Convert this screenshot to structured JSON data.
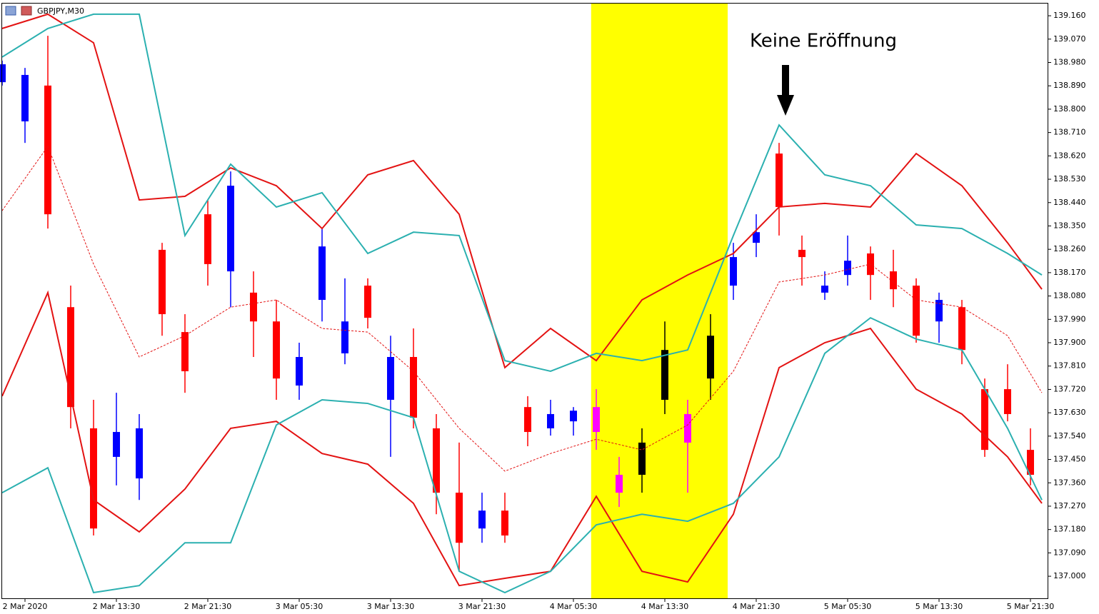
{
  "chart_data": {
    "type": "candlestick",
    "symbol": "GBPJPY,M30",
    "annotation": "Keine Eröffnung",
    "xlim": [
      0,
      183
    ],
    "ylim": [
      136.915,
      139.207
    ],
    "xticks": [
      {
        "value": 4,
        "label": "2 Mar 2020"
      },
      {
        "value": 20,
        "label": "2 Mar 13:30"
      },
      {
        "value": 36,
        "label": "2 Mar 21:30"
      },
      {
        "value": 52,
        "label": "3 Mar 05:30"
      },
      {
        "value": 68,
        "label": "3 Mar 13:30"
      },
      {
        "value": 84,
        "label": "3 Mar 21:30"
      },
      {
        "value": 100,
        "label": "4 Mar 05:30"
      },
      {
        "value": 116,
        "label": "4 Mar 13:30"
      },
      {
        "value": 132,
        "label": "4 Mar 21:30"
      },
      {
        "value": 148,
        "label": "5 Mar 05:30"
      },
      {
        "value": 164,
        "label": "5 Mar 13:30"
      },
      {
        "value": 180,
        "label": "5 Mar 21:30"
      }
    ],
    "yticks": [
      {
        "value": 137,
        "label": "137.000"
      },
      {
        "value": 137.09,
        "label": "137.090"
      },
      {
        "value": 137.18,
        "label": "137.180"
      },
      {
        "value": 137.27,
        "label": "137.270"
      },
      {
        "value": 137.36,
        "label": "137.360"
      },
      {
        "value": 137.45,
        "label": "137.450"
      },
      {
        "value": 137.54,
        "label": "137.540"
      },
      {
        "value": 137.63,
        "label": "137.630"
      },
      {
        "value": 137.72,
        "label": "137.720"
      },
      {
        "value": 137.81,
        "label": "137.810"
      },
      {
        "value": 137.9,
        "label": "137.900"
      },
      {
        "value": 137.99,
        "label": "137.990"
      },
      {
        "value": 138.08,
        "label": "138.080"
      },
      {
        "value": 138.17,
        "label": "138.170"
      },
      {
        "value": 138.26,
        "label": "138.260"
      },
      {
        "value": 138.35,
        "label": "138.350"
      },
      {
        "value": 138.44,
        "label": "138.440"
      },
      {
        "value": 138.53,
        "label": "138.530"
      },
      {
        "value": 138.62,
        "label": "138.620"
      },
      {
        "value": 138.71,
        "label": "138.710"
      },
      {
        "value": 138.8,
        "label": "138.800"
      },
      {
        "value": 138.89,
        "label": "138.890"
      },
      {
        "value": 138.98,
        "label": "138.980"
      },
      {
        "value": 139.07,
        "label": "139.070"
      },
      {
        "value": 139.16,
        "label": "139.160"
      }
    ],
    "highlight_range": [
      103.1,
      127
    ],
    "highlight_color": "#ffff00",
    "up_color": "#0000ff",
    "down_color": "#ff0000",
    "highlight_up_color": "#000000",
    "highlight_down_color": "#ff00ff",
    "candles": {
      "x": [
        0,
        4,
        8,
        12,
        16,
        20,
        24,
        28,
        32,
        36,
        40,
        44,
        48,
        52,
        56,
        60,
        64,
        68,
        72,
        76,
        80,
        84,
        88,
        92,
        96,
        100,
        104,
        108,
        112,
        116,
        120,
        124,
        128,
        132,
        136,
        140,
        144,
        148,
        152,
        156,
        160,
        164,
        168,
        172,
        176,
        180
      ],
      "open": [
        138.904,
        138.753,
        138.891,
        138.037,
        137.57,
        137.46,
        137.377,
        138.258,
        137.941,
        138.395,
        138.175,
        138.093,
        137.982,
        137.735,
        138.065,
        137.859,
        138.12,
        137.68,
        137.845,
        137.57,
        137.322,
        137.184,
        137.253,
        137.652,
        137.57,
        137.597,
        137.652,
        137.391,
        137.391,
        137.68,
        137.625,
        137.762,
        138.12,
        138.285,
        138.629,
        138.258,
        138.093,
        138.161,
        138.244,
        138.175,
        138.12,
        137.982,
        138.037,
        137.721,
        137.721,
        137.487
      ],
      "high": [
        138.987,
        138.959,
        139.083,
        138.12,
        137.68,
        137.707,
        137.625,
        138.285,
        138.01,
        138.45,
        138.56,
        138.175,
        138.065,
        137.9,
        138.34,
        138.148,
        138.148,
        137.927,
        137.955,
        137.625,
        137.515,
        137.322,
        137.322,
        137.694,
        137.68,
        137.652,
        137.721,
        137.46,
        137.57,
        137.982,
        137.68,
        138.01,
        138.285,
        138.395,
        138.67,
        138.313,
        138.175,
        138.313,
        138.271,
        138.258,
        138.148,
        138.093,
        138.065,
        137.762,
        137.817,
        137.57
      ],
      "low": [
        138.891,
        138.67,
        138.34,
        137.57,
        137.157,
        137.35,
        137.294,
        137.927,
        137.707,
        138.12,
        138.037,
        137.845,
        137.68,
        137.68,
        137.982,
        137.817,
        137.955,
        137.46,
        137.57,
        137.239,
        137.019,
        137.129,
        137.129,
        137.501,
        137.542,
        137.542,
        137.487,
        137.267,
        137.322,
        137.625,
        137.322,
        137.68,
        138.065,
        138.23,
        138.313,
        138.12,
        138.065,
        138.12,
        138.065,
        138.037,
        137.9,
        137.9,
        137.817,
        137.46,
        137.597,
        137.35
      ],
      "close": [
        138.973,
        138.932,
        138.395,
        137.652,
        137.184,
        137.556,
        137.57,
        138.01,
        137.79,
        138.203,
        138.505,
        137.982,
        137.762,
        137.845,
        138.271,
        137.982,
        137.996,
        137.845,
        137.611,
        137.322,
        137.129,
        137.253,
        137.157,
        137.556,
        137.625,
        137.638,
        137.556,
        137.322,
        137.515,
        137.872,
        137.515,
        137.927,
        138.23,
        138.326,
        138.423,
        138.23,
        138.12,
        138.216,
        138.161,
        138.106,
        137.927,
        138.065,
        137.872,
        137.487,
        137.625,
        137.391
      ]
    },
    "series": [
      {
        "color": "#e31212",
        "dashed": false,
        "x": [
          0,
          8,
          16,
          24,
          32,
          40,
          48,
          56,
          64,
          72,
          80,
          88,
          96,
          104,
          112,
          120,
          128,
          136,
          144,
          152,
          160,
          168,
          176,
          182
        ],
        "values": [
          139.111,
          139.166,
          139.056,
          138.45,
          138.464,
          138.574,
          138.505,
          138.34,
          138.547,
          138.602,
          138.395,
          137.804,
          137.955,
          137.831,
          138.065,
          138.161,
          138.244,
          138.423,
          138.437,
          138.423,
          138.629,
          138.505,
          138.285,
          138.106
        ]
      },
      {
        "color": "#e31212",
        "dashed": false,
        "x": [
          0,
          8,
          16,
          24,
          32,
          40,
          48,
          56,
          64,
          72,
          80,
          88,
          96,
          104,
          112,
          120,
          128,
          136,
          144,
          152,
          160,
          168,
          176,
          182
        ],
        "values": [
          137.694,
          138.093,
          137.294,
          137.171,
          137.336,
          137.57,
          137.597,
          137.473,
          137.432,
          137.281,
          136.964,
          136.992,
          137.019,
          137.308,
          137.019,
          136.978,
          137.239,
          137.804,
          137.9,
          137.955,
          137.721,
          137.625,
          137.46,
          137.281
        ]
      },
      {
        "color": "#2bb0b0",
        "dashed": false,
        "x": [
          0,
          8,
          16,
          24,
          32,
          40,
          48,
          56,
          64,
          72,
          80,
          88,
          96,
          104,
          112,
          120,
          128,
          136,
          144,
          152,
          160,
          168,
          176,
          182
        ],
        "values": [
          139.001,
          139.111,
          139.166,
          139.166,
          138.313,
          138.588,
          138.423,
          138.478,
          138.244,
          138.326,
          138.313,
          137.831,
          137.79,
          137.859,
          137.831,
          137.872,
          138.313,
          138.739,
          138.547,
          138.505,
          138.354,
          138.34,
          138.244,
          138.161
        ]
      },
      {
        "color": "#2bb0b0",
        "dashed": false,
        "x": [
          0,
          8,
          16,
          24,
          32,
          40,
          48,
          56,
          64,
          72,
          80,
          88,
          96,
          104,
          112,
          120,
          128,
          136,
          144,
          152,
          160,
          168,
          176,
          182
        ],
        "values": [
          137.322,
          137.418,
          136.937,
          136.964,
          137.129,
          137.129,
          137.583,
          137.68,
          137.666,
          137.611,
          137.019,
          136.937,
          137.019,
          137.198,
          137.239,
          137.212,
          137.281,
          137.46,
          137.859,
          137.996,
          137.914,
          137.872,
          137.57,
          137.294
        ]
      },
      {
        "color": "#e31212",
        "dashed": true,
        "x": [
          0,
          8,
          16,
          24,
          32,
          40,
          48,
          56,
          64,
          72,
          80,
          88,
          96,
          104,
          112,
          120,
          128,
          136,
          144,
          152,
          160,
          168,
          176,
          182
        ],
        "values": [
          138.409,
          138.657,
          138.203,
          137.845,
          137.927,
          138.037,
          138.065,
          137.955,
          137.941,
          137.79,
          137.57,
          137.405,
          137.473,
          137.528,
          137.487,
          137.583,
          137.79,
          138.134,
          138.161,
          138.203,
          138.065,
          138.037,
          137.927,
          137.707
        ]
      }
    ]
  }
}
